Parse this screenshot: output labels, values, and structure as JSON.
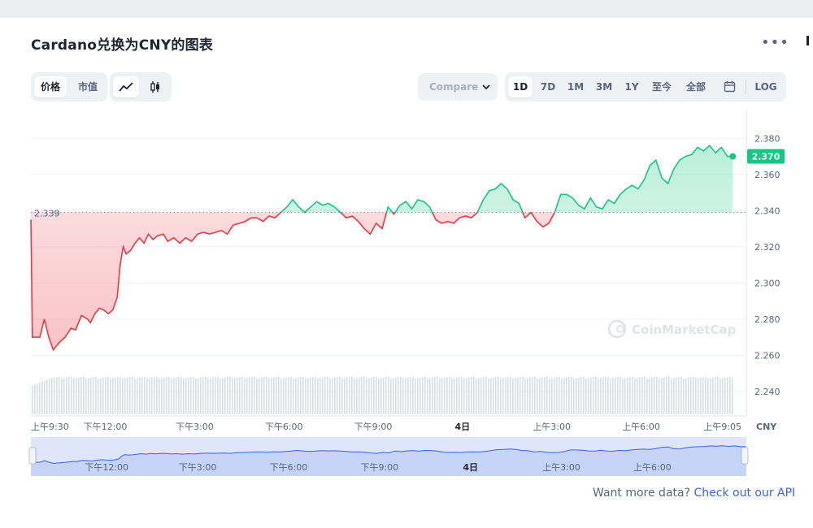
{
  "title": "Cardano兑换为CNY的图表",
  "menu_icon": "more-dots-icon",
  "toolbar": {
    "type_tabs": [
      {
        "label": "价格",
        "active": true
      },
      {
        "label": "市值",
        "active": false
      }
    ],
    "chart_modes": [
      {
        "icon": "line-chart-icon",
        "active": true
      },
      {
        "icon": "candlestick-icon",
        "active": false
      }
    ],
    "compare_label": "Compare",
    "ranges": [
      {
        "label": "1D",
        "active": true
      },
      {
        "label": "7D",
        "active": false
      },
      {
        "label": "1M",
        "active": false
      },
      {
        "label": "3M",
        "active": false
      },
      {
        "label": "1Y",
        "active": false
      },
      {
        "label": "至今",
        "active": false
      },
      {
        "label": "全部",
        "active": false
      }
    ],
    "calendar_icon": "calendar-icon",
    "log_label": "LOG"
  },
  "chart_data": {
    "type": "line",
    "currency": "CNY",
    "open_value": 2.339,
    "open_label": "2.339",
    "current_value": 2.37,
    "current_label": "2.370",
    "ylim": [
      2.235,
      2.39
    ],
    "y_ticks": [
      "2.380",
      "2.360",
      "2.340",
      "2.320",
      "2.300",
      "2.280",
      "2.260",
      "2.240"
    ],
    "x_ticks": [
      "上午9:30",
      "下午12:00",
      "下午3:00",
      "下午6:00",
      "下午9:00",
      "4日",
      "上午3:00",
      "上午6:00",
      "上午9:05"
    ],
    "x_tick_hours": [
      0,
      2.5,
      5.5,
      8.5,
      11.5,
      14.5,
      17.5,
      20.5,
      23.58
    ],
    "x_range_hours": [
      0,
      23.6
    ],
    "up_color": "#16c784",
    "down_color": "#ea3943",
    "series": [
      {
        "values": [
          [
            0,
            2.335
          ],
          [
            0.05,
            2.27
          ],
          [
            0.3,
            2.27
          ],
          [
            0.45,
            2.28
          ],
          [
            0.6,
            2.27
          ],
          [
            0.75,
            2.263
          ],
          [
            0.95,
            2.267
          ],
          [
            1.15,
            2.27
          ],
          [
            1.35,
            2.275
          ],
          [
            1.5,
            2.274
          ],
          [
            1.7,
            2.282
          ],
          [
            1.9,
            2.28
          ],
          [
            2.0,
            2.278
          ],
          [
            2.15,
            2.283
          ],
          [
            2.3,
            2.286
          ],
          [
            2.45,
            2.285
          ],
          [
            2.6,
            2.283
          ],
          [
            2.75,
            2.285
          ],
          [
            2.9,
            2.292
          ],
          [
            3.0,
            2.31
          ],
          [
            3.1,
            2.32
          ],
          [
            3.2,
            2.316
          ],
          [
            3.35,
            2.318
          ],
          [
            3.5,
            2.322
          ],
          [
            3.65,
            2.325
          ],
          [
            3.8,
            2.322
          ],
          [
            3.95,
            2.327
          ],
          [
            4.1,
            2.324
          ],
          [
            4.25,
            2.326
          ],
          [
            4.45,
            2.327
          ],
          [
            4.6,
            2.323
          ],
          [
            4.8,
            2.325
          ],
          [
            5.0,
            2.322
          ],
          [
            5.2,
            2.325
          ],
          [
            5.4,
            2.323
          ],
          [
            5.6,
            2.327
          ],
          [
            5.8,
            2.328
          ],
          [
            6.0,
            2.327
          ],
          [
            6.2,
            2.328
          ],
          [
            6.4,
            2.329
          ],
          [
            6.6,
            2.327
          ],
          [
            6.8,
            2.332
          ],
          [
            7.0,
            2.333
          ],
          [
            7.2,
            2.334
          ],
          [
            7.4,
            2.336
          ],
          [
            7.6,
            2.336
          ],
          [
            7.8,
            2.334
          ],
          [
            8.0,
            2.337
          ],
          [
            8.2,
            2.336
          ],
          [
            8.4,
            2.339
          ],
          [
            8.6,
            2.342
          ],
          [
            8.8,
            2.346
          ],
          [
            9.0,
            2.342
          ],
          [
            9.2,
            2.339
          ],
          [
            9.4,
            2.342
          ],
          [
            9.6,
            2.345
          ],
          [
            9.8,
            2.343
          ],
          [
            10.0,
            2.344
          ],
          [
            10.2,
            2.342
          ],
          [
            10.4,
            2.339
          ],
          [
            10.6,
            2.336
          ],
          [
            10.8,
            2.337
          ],
          [
            11.0,
            2.334
          ],
          [
            11.2,
            2.33
          ],
          [
            11.4,
            2.327
          ],
          [
            11.6,
            2.333
          ],
          [
            11.8,
            2.33
          ],
          [
            12.0,
            2.342
          ],
          [
            12.2,
            2.338
          ],
          [
            12.4,
            2.343
          ],
          [
            12.6,
            2.345
          ],
          [
            12.8,
            2.341
          ],
          [
            13.0,
            2.346
          ],
          [
            13.2,
            2.345
          ],
          [
            13.4,
            2.342
          ],
          [
            13.6,
            2.335
          ],
          [
            13.8,
            2.333
          ],
          [
            14.0,
            2.334
          ],
          [
            14.2,
            2.333
          ],
          [
            14.4,
            2.336
          ],
          [
            14.6,
            2.337
          ],
          [
            14.8,
            2.336
          ],
          [
            15.0,
            2.339
          ],
          [
            15.2,
            2.346
          ],
          [
            15.4,
            2.351
          ],
          [
            15.6,
            2.352
          ],
          [
            15.8,
            2.355
          ],
          [
            16.0,
            2.352
          ],
          [
            16.2,
            2.346
          ],
          [
            16.4,
            2.344
          ],
          [
            16.6,
            2.336
          ],
          [
            16.8,
            2.339
          ],
          [
            17.0,
            2.334
          ],
          [
            17.2,
            2.331
          ],
          [
            17.4,
            2.333
          ],
          [
            17.6,
            2.339
          ],
          [
            17.8,
            2.349
          ],
          [
            18.0,
            2.349
          ],
          [
            18.2,
            2.347
          ],
          [
            18.4,
            2.343
          ],
          [
            18.6,
            2.341
          ],
          [
            18.8,
            2.347
          ],
          [
            19.0,
            2.342
          ],
          [
            19.2,
            2.341
          ],
          [
            19.4,
            2.346
          ],
          [
            19.6,
            2.344
          ],
          [
            19.8,
            2.349
          ],
          [
            20.0,
            2.352
          ],
          [
            20.2,
            2.354
          ],
          [
            20.4,
            2.352
          ],
          [
            20.6,
            2.357
          ],
          [
            20.8,
            2.365
          ],
          [
            21.0,
            2.368
          ],
          [
            21.2,
            2.358
          ],
          [
            21.4,
            2.355
          ],
          [
            21.6,
            2.363
          ],
          [
            21.8,
            2.368
          ],
          [
            22.0,
            2.37
          ],
          [
            22.2,
            2.371
          ],
          [
            22.4,
            2.375
          ],
          [
            22.6,
            2.373
          ],
          [
            22.8,
            2.376
          ],
          [
            23.0,
            2.372
          ],
          [
            23.2,
            2.375
          ],
          [
            23.4,
            2.37
          ],
          [
            23.58,
            2.37
          ]
        ]
      }
    ],
    "volume_bars": "gray bars under the price line",
    "watermark": "CoinMarketCap",
    "navigator": {
      "x_ticks": [
        "下午12:00",
        "下午3:00",
        "下午6:00",
        "下午9:00",
        "4日",
        "上午3:00",
        "上午6:00"
      ]
    }
  },
  "footer": {
    "text": "Want more data?",
    "link": "Check out our API"
  }
}
